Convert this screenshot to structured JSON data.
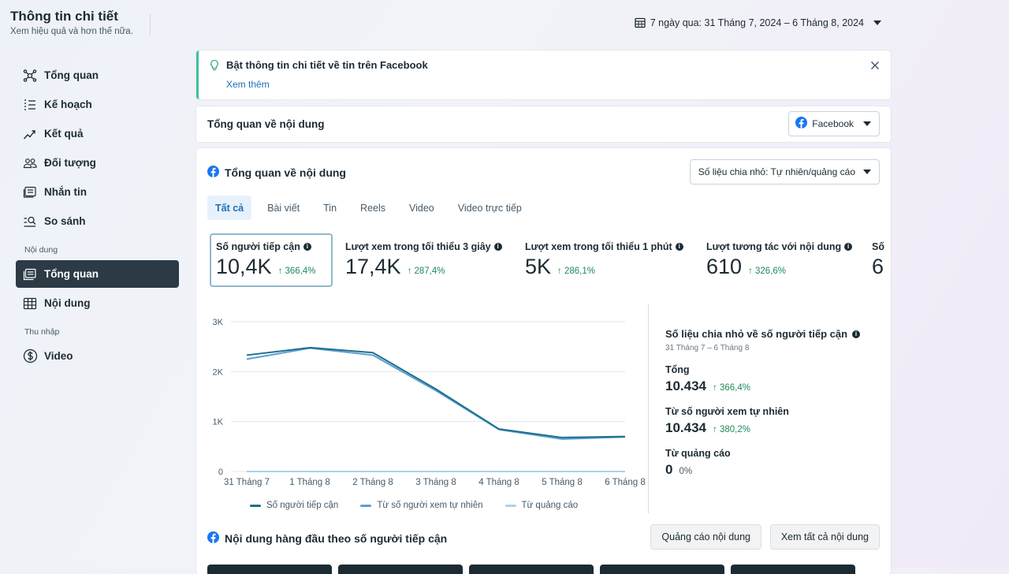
{
  "header": {
    "title": "Thông tin chi tiết",
    "subtitle": "Xem hiệu quả và hơn thế nữa.",
    "date_range": "7 ngày qua: 31 Tháng 7, 2024 – 6 Tháng 8, 2024"
  },
  "sidebar": {
    "items": [
      {
        "label": "Tổng quan",
        "icon": "network-icon"
      },
      {
        "label": "Kế hoạch",
        "icon": "list-icon"
      },
      {
        "label": "Kết quả",
        "icon": "trend-icon"
      },
      {
        "label": "Đối tượng",
        "icon": "people-icon"
      },
      {
        "label": "Nhắn tin",
        "icon": "message-icon"
      },
      {
        "label": "So sánh",
        "icon": "compare-icon"
      }
    ],
    "section_content": "Nội dung",
    "content_items": [
      {
        "label": "Tổng quan",
        "icon": "content-overview-icon",
        "active": true
      },
      {
        "label": "Nội dung",
        "icon": "table-icon"
      }
    ],
    "section_income": "Thu nhập",
    "income_items": [
      {
        "label": "Video",
        "icon": "dollar-icon"
      }
    ]
  },
  "banner": {
    "title": "Bật thông tin chi tiết về tin trên Facebook",
    "link": "Xem thêm"
  },
  "overview": {
    "title": "Tổng quan về nội dung",
    "platform_select": "Facebook"
  },
  "content_overview": {
    "title": "Tổng quan về nội dung",
    "split_select": "Số liệu chia nhỏ: Tự nhiên/quảng cáo",
    "tabs": [
      "Tất cả",
      "Bài viết",
      "Tin",
      "Reels",
      "Video",
      "Video trực tiếp"
    ],
    "metrics": [
      {
        "label": "Số người tiếp cận",
        "value": "10,4K",
        "change": "↑ 366,4%"
      },
      {
        "label": "Lượt xem trong tối thiểu 3 giây",
        "value": "17,4K",
        "change": "↑ 287,4%"
      },
      {
        "label": "Lượt xem trong tối thiểu 1 phút",
        "value": "5K",
        "change": "↑ 286,1%"
      },
      {
        "label": "Lượt tương tác với nội dung",
        "value": "610",
        "change": "↑ 326,6%"
      },
      {
        "label": "Số",
        "value": "6",
        "change": ""
      }
    ]
  },
  "chart_data": {
    "type": "line",
    "x": [
      "31 Tháng 7",
      "1 Tháng 8",
      "2 Tháng 8",
      "3 Tháng 8",
      "4 Tháng 8",
      "5 Tháng 8",
      "6 Tháng 8"
    ],
    "ylim": [
      0,
      3000
    ],
    "yticks": [
      "0",
      "1K",
      "2K",
      "3K"
    ],
    "ytick_values": [
      0,
      1000,
      2000,
      3000
    ],
    "grid": true,
    "series": [
      {
        "name": "Số người tiếp cận",
        "color": "#1f6f8b",
        "values": [
          2330,
          2480,
          2380,
          1650,
          850,
          680,
          700
        ]
      },
      {
        "name": "Từ số người xem tự nhiên",
        "color": "#5a9fd4",
        "values": [
          2250,
          2470,
          2330,
          1620,
          840,
          650,
          690
        ]
      },
      {
        "name": "Từ quảng cáo",
        "color": "#a9d4ef",
        "values": [
          0,
          0,
          0,
          0,
          0,
          0,
          0
        ]
      }
    ]
  },
  "breakdown": {
    "title": "Số liệu chia nhỏ về số người tiếp cận",
    "date": "31 Tháng 7 – 6 Tháng 8",
    "total_label": "Tổng",
    "total_value": "10.434",
    "total_change": "↑ 366,4%",
    "organic_label": "Từ số người xem tự nhiên",
    "organic_value": "10.434",
    "organic_change": "↑ 380,2%",
    "ads_label": "Từ quảng cáo",
    "ads_value": "0",
    "ads_change": "0%"
  },
  "top_content": {
    "title": "Nội dung hàng đầu theo số người tiếp cận",
    "btn_ads": "Quảng cáo nội dung",
    "btn_all": "Xem tất cả nội dung"
  }
}
